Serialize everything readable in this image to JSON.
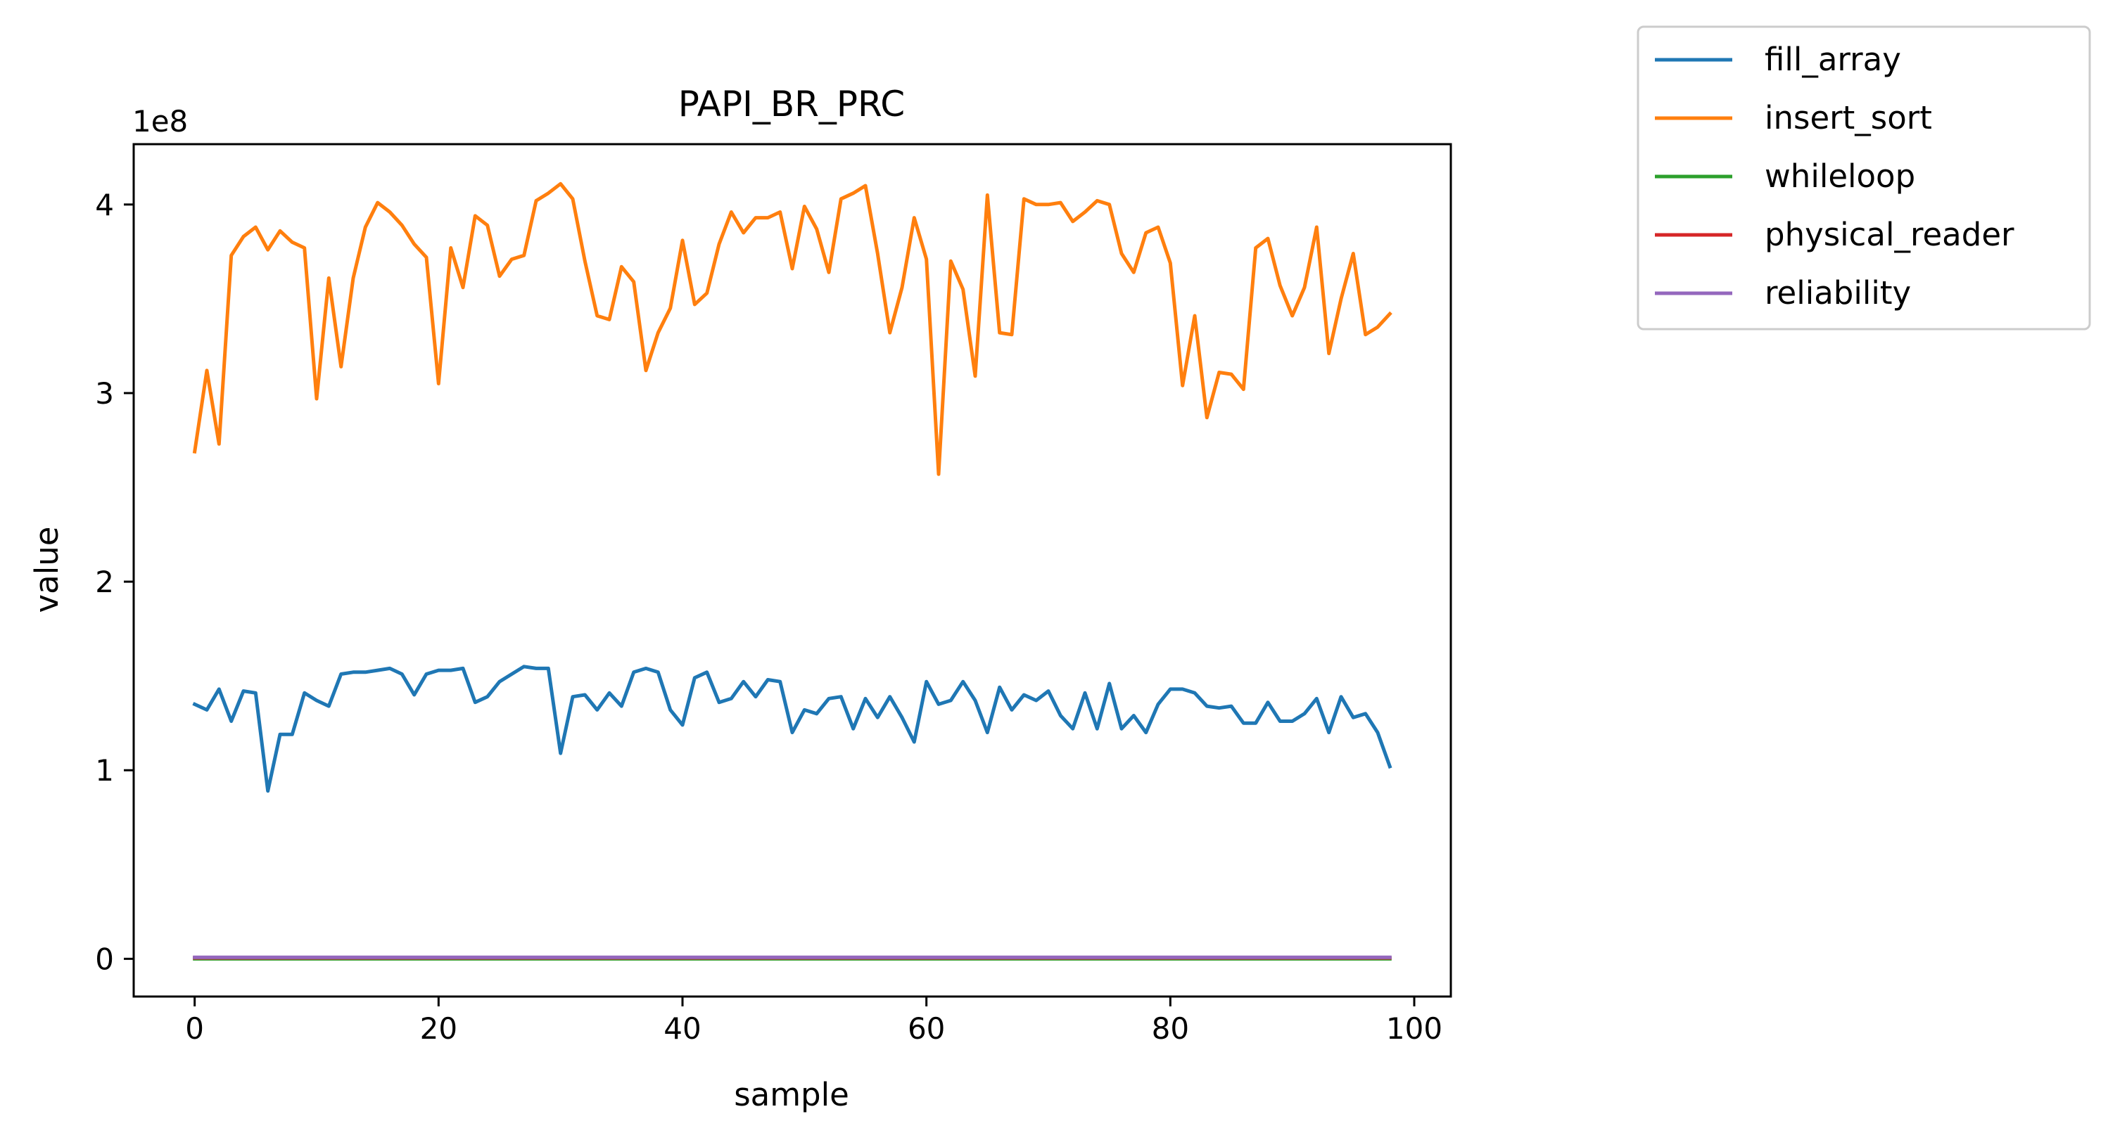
{
  "chart_data": {
    "type": "line",
    "title": "PAPI_BR_PRC",
    "xlabel": "sample",
    "ylabel": "value",
    "y_offset_label": "1e8",
    "xlim": [
      -5,
      103
    ],
    "ylim": [
      -0.2,
      4.32
    ],
    "xticks": [
      0,
      20,
      40,
      60,
      80,
      100
    ],
    "yticks": [
      0,
      1,
      2,
      3,
      4
    ],
    "y_scale_note": "values in units of 1e8",
    "grid": false,
    "legend_position": "outside-top-right",
    "x": [
      0,
      1,
      2,
      3,
      4,
      5,
      6,
      7,
      8,
      9,
      10,
      11,
      12,
      13,
      14,
      15,
      16,
      17,
      18,
      19,
      20,
      21,
      22,
      23,
      24,
      25,
      26,
      27,
      28,
      29,
      30,
      31,
      32,
      33,
      34,
      35,
      36,
      37,
      38,
      39,
      40,
      41,
      42,
      43,
      44,
      45,
      46,
      47,
      48,
      49,
      50,
      51,
      52,
      53,
      54,
      55,
      56,
      57,
      58,
      59,
      60,
      61,
      62,
      63,
      64,
      65,
      66,
      67,
      68,
      69,
      70,
      71,
      72,
      73,
      74,
      75,
      76,
      77,
      78,
      79,
      80,
      81,
      82,
      83,
      84,
      85,
      86,
      87,
      88,
      89,
      90,
      91,
      92,
      93,
      94,
      95,
      96,
      97,
      98
    ],
    "series": [
      {
        "name": "fill_array",
        "color": "#1f77b4",
        "values": [
          1.35,
          1.32,
          1.43,
          1.26,
          1.42,
          1.41,
          0.89,
          1.19,
          1.19,
          1.41,
          1.37,
          1.34,
          1.51,
          1.52,
          1.52,
          1.53,
          1.54,
          1.51,
          1.4,
          1.51,
          1.53,
          1.53,
          1.54,
          1.36,
          1.39,
          1.47,
          1.51,
          1.55,
          1.54,
          1.54,
          1.09,
          1.39,
          1.4,
          1.32,
          1.41,
          1.34,
          1.52,
          1.54,
          1.52,
          1.32,
          1.24,
          1.49,
          1.52,
          1.36,
          1.38,
          1.47,
          1.39,
          1.48,
          1.47,
          1.2,
          1.32,
          1.3,
          1.38,
          1.39,
          1.22,
          1.38,
          1.28,
          1.39,
          1.28,
          1.15,
          1.47,
          1.35,
          1.37,
          1.47,
          1.37,
          1.2,
          1.44,
          1.32,
          1.4,
          1.37,
          1.42,
          1.29,
          1.22,
          1.41,
          1.22,
          1.46,
          1.22,
          1.29,
          1.2,
          1.35,
          1.43,
          1.43,
          1.41,
          1.34,
          1.33,
          1.34,
          1.25,
          1.25,
          1.36,
          1.26,
          1.26,
          1.3,
          1.38,
          1.2,
          1.39,
          1.28,
          1.3,
          1.2,
          1.02
        ]
      },
      {
        "name": "insert_sort",
        "color": "#ff7f0e",
        "values": [
          2.69,
          3.12,
          2.73,
          3.73,
          3.83,
          3.88,
          3.76,
          3.86,
          3.8,
          3.77,
          2.97,
          3.61,
          3.14,
          3.61,
          3.88,
          4.01,
          3.96,
          3.89,
          3.79,
          3.72,
          3.05,
          3.77,
          3.56,
          3.94,
          3.89,
          3.62,
          3.71,
          3.73,
          4.02,
          4.06,
          4.11,
          4.03,
          3.7,
          3.41,
          3.39,
          3.67,
          3.59,
          3.12,
          3.32,
          3.45,
          3.81,
          3.47,
          3.53,
          3.79,
          3.96,
          3.85,
          3.93,
          3.93,
          3.96,
          3.66,
          3.99,
          3.87,
          3.64,
          4.03,
          4.06,
          4.1,
          3.74,
          3.32,
          3.56,
          3.93,
          3.71,
          2.57,
          3.7,
          3.55,
          3.09,
          4.05,
          3.32,
          3.31,
          4.03,
          4.0,
          4.0,
          4.01,
          3.91,
          3.96,
          4.02,
          4.0,
          3.74,
          3.64,
          3.85,
          3.88,
          3.69,
          3.04,
          3.41,
          2.87,
          3.11,
          3.1,
          3.02,
          3.77,
          3.82,
          3.57,
          3.41,
          3.56,
          3.88,
          3.21,
          3.5,
          3.74,
          3.31,
          3.35,
          3.42
        ]
      },
      {
        "name": "whileloop",
        "color": "#2ca02c",
        "constant_value": 0.0
      },
      {
        "name": "physical_reader",
        "color": "#d62728",
        "constant_value": 0.005
      },
      {
        "name": "reliability",
        "color": "#9467bd",
        "constant_value": 0.008
      }
    ]
  }
}
